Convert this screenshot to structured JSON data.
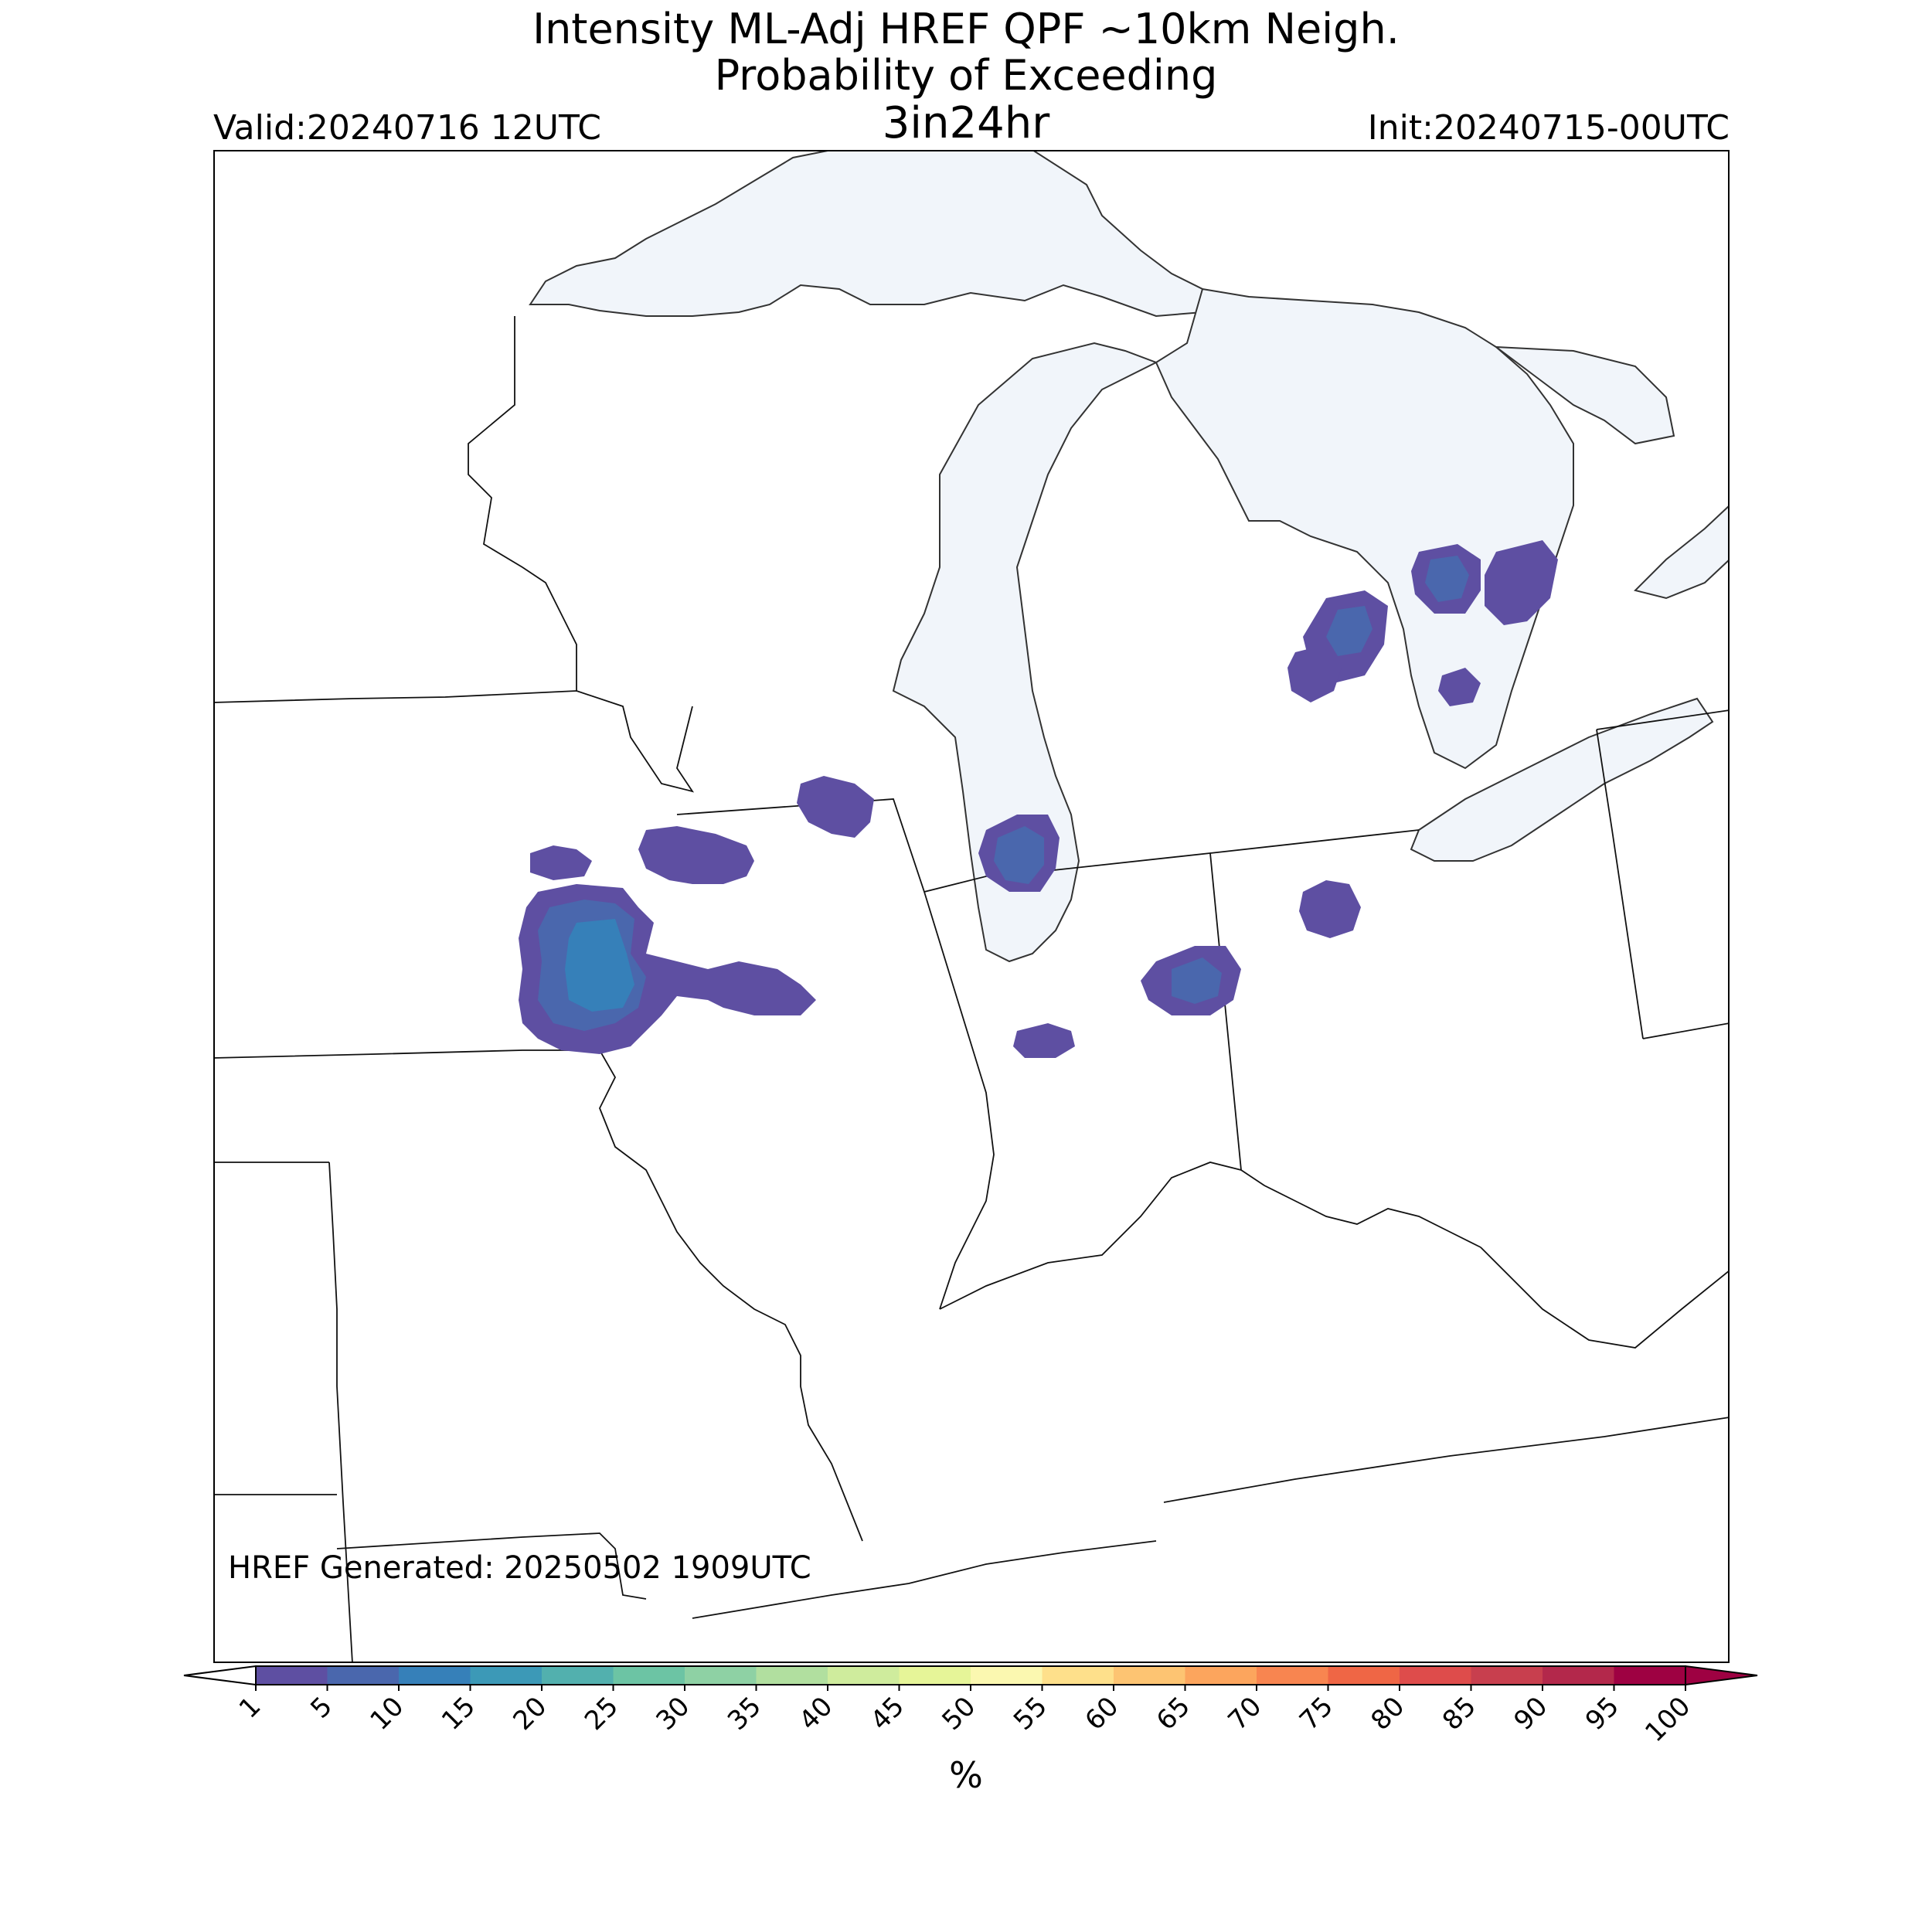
{
  "title": {
    "line1": "Intensity ML-Adj HREF QPF ~10km Neigh.",
    "line2": "Probability of Exceeding",
    "line3": "3in24hr"
  },
  "valid": "Valid:20240716 12UTC",
  "init": "Init:20240715-00UTC",
  "footnote": "HREF Generated: 20250502 1909UTC",
  "colorbar": {
    "unit": "%",
    "ticks": [
      "1",
      "5",
      "10",
      "15",
      "20",
      "25",
      "30",
      "35",
      "40",
      "45",
      "50",
      "55",
      "60",
      "65",
      "70",
      "75",
      "80",
      "85",
      "90",
      "95",
      "100"
    ],
    "colors": [
      "#5e4fa2",
      "#4a67ad",
      "#3680b9",
      "#3c99b7",
      "#52b0ae",
      "#6cc4a4",
      "#8ed1a4",
      "#b1df9f",
      "#cfec9d",
      "#e6f598",
      "#fbf8b0",
      "#fee08b",
      "#fdc472",
      "#fca55d",
      "#f88550",
      "#ef6645",
      "#de4c4b",
      "#c83f4e",
      "#b3284b",
      "#9e0142"
    ]
  },
  "colors": {
    "water": "#f1f5fa",
    "water_dark": "#e6edf6",
    "prob_1": "#5e4fa2",
    "prob_5": "#4a67ad",
    "prob_10": "#3680b9"
  }
}
